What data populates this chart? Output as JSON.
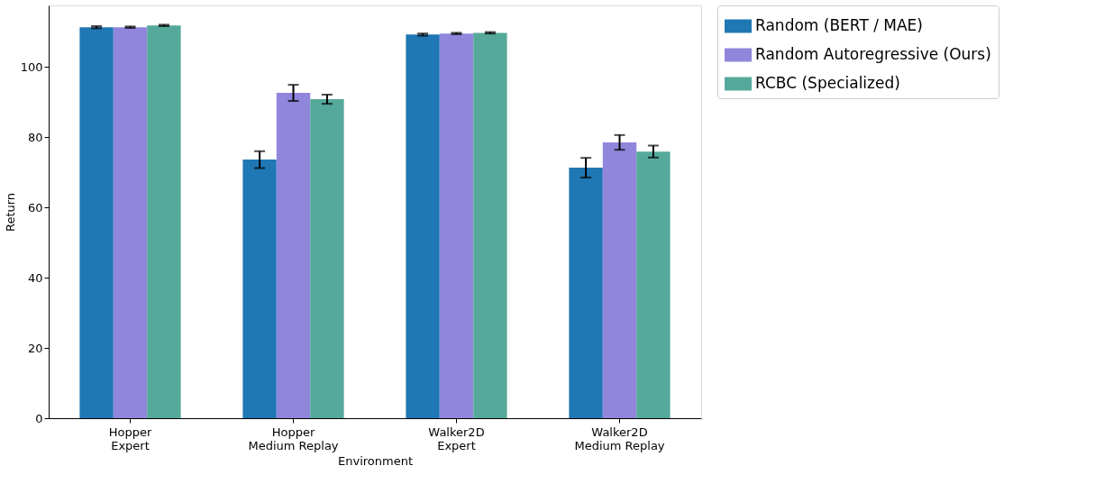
{
  "chart_data": {
    "type": "bar",
    "xlabel": "Environment",
    "ylabel": "Return",
    "categories": [
      "Hopper\nExpert",
      "Hopper\nMedium Replay",
      "Walker2D\nExpert",
      "Walker2D\nMedium Replay"
    ],
    "series": [
      {
        "name": "Random (BERT / MAE)",
        "color": "#1f77b4",
        "values": [
          111.3,
          73.6,
          109.2,
          71.3
        ],
        "errors": [
          0.3,
          2.4,
          0.3,
          2.8
        ]
      },
      {
        "name": "Random Autoregressive (Ours)",
        "color": "#9086db",
        "values": [
          111.3,
          92.6,
          109.5,
          78.5
        ],
        "errors": [
          0.2,
          2.3,
          0.2,
          2.1
        ]
      },
      {
        "name": "RCBC (Specialized)",
        "color": "#55a99a",
        "values": [
          111.8,
          90.8,
          109.7,
          75.9
        ],
        "errors": [
          0.2,
          1.3,
          0.2,
          1.7
        ]
      }
    ],
    "ylim": [
      0,
      117.5
    ],
    "yticks": [
      0,
      20,
      40,
      60,
      80,
      100
    ],
    "grid": false,
    "legend": "right"
  }
}
